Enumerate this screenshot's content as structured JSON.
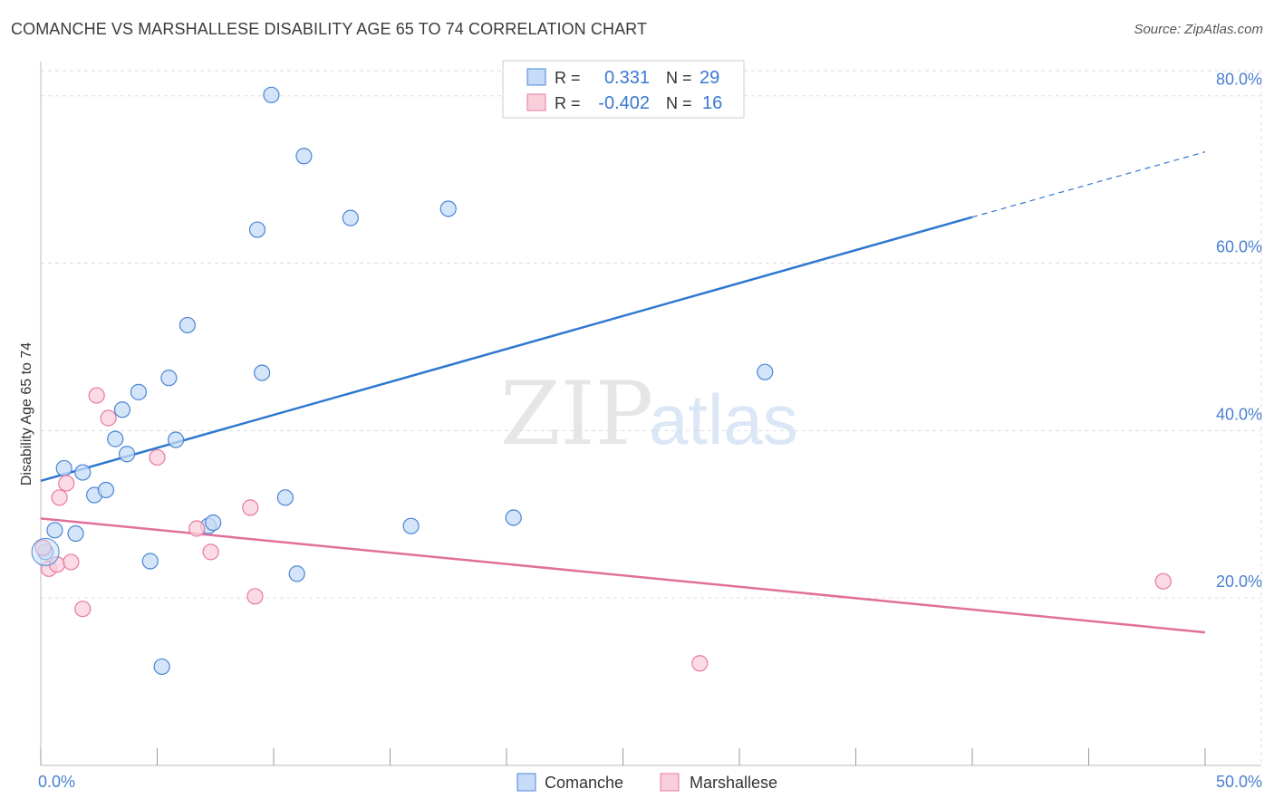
{
  "title": "COMANCHE VS MARSHALLESE DISABILITY AGE 65 TO 74 CORRELATION CHART",
  "source": "Source: ZipAtlas.com",
  "watermark": {
    "zip": "ZIP",
    "atlas": "atlas"
  },
  "colors": {
    "blue": "#4a86d4",
    "blue_fill": "#c6dbf7",
    "blue_line": "#2f78cf",
    "pink": "#e8799e",
    "pink_fill": "#f9cfdc",
    "pink_line": "#e0709a",
    "tick_text": "#4a7fd0",
    "grid": "#dddddd"
  },
  "legend": {
    "rows": [
      {
        "r_label": "R =",
        "r_value": "0.331",
        "n_label": "N =",
        "n_value": "29"
      },
      {
        "r_label": "R =",
        "r_value": "-0.402",
        "n_label": "N =",
        "n_value": "16"
      }
    ]
  },
  "chart_data": {
    "type": "scatter",
    "title": "COMANCHE VS MARSHALLESE DISABILITY AGE 65 TO 74 CORRELATION CHART",
    "xlabel": "",
    "ylabel": "Disability Age 65 to 74",
    "xlim": [
      0,
      50
    ],
    "ylim": [
      0,
      83
    ],
    "x_tick_labels": [
      "0.0%",
      "50.0%"
    ],
    "y_ticks": [
      20,
      40,
      60,
      80
    ],
    "y_tick_labels": [
      "20.0%",
      "40.0%",
      "60.0%",
      "80.0%"
    ],
    "grid": true,
    "series": [
      {
        "name": "Comanche",
        "color": "blue",
        "points": [
          {
            "x": 0.2,
            "y": 25.5
          },
          {
            "x": 0.6,
            "y": 28.1
          },
          {
            "x": 1.0,
            "y": 35.5
          },
          {
            "x": 1.5,
            "y": 27.7
          },
          {
            "x": 1.8,
            "y": 35.0
          },
          {
            "x": 2.3,
            "y": 32.3
          },
          {
            "x": 2.8,
            "y": 32.9
          },
          {
            "x": 3.2,
            "y": 39.0
          },
          {
            "x": 3.5,
            "y": 42.5
          },
          {
            "x": 3.7,
            "y": 37.2
          },
          {
            "x": 4.2,
            "y": 44.6
          },
          {
            "x": 4.7,
            "y": 24.4
          },
          {
            "x": 5.2,
            "y": 11.8
          },
          {
            "x": 5.5,
            "y": 46.3
          },
          {
            "x": 5.8,
            "y": 38.9
          },
          {
            "x": 6.3,
            "y": 52.6
          },
          {
            "x": 7.2,
            "y": 28.6
          },
          {
            "x": 7.4,
            "y": 29.0
          },
          {
            "x": 9.3,
            "y": 64.0
          },
          {
            "x": 9.5,
            "y": 46.9
          },
          {
            "x": 9.9,
            "y": 80.1
          },
          {
            "x": 10.5,
            "y": 32.0
          },
          {
            "x": 11.0,
            "y": 22.9
          },
          {
            "x": 11.3,
            "y": 72.8
          },
          {
            "x": 13.3,
            "y": 65.4
          },
          {
            "x": 15.9,
            "y": 28.6
          },
          {
            "x": 17.5,
            "y": 66.5
          },
          {
            "x": 20.3,
            "y": 29.6
          },
          {
            "x": 31.1,
            "y": 47.0
          }
        ],
        "trend": {
          "x": [
            0,
            40
          ],
          "y": [
            34.0,
            65.5
          ],
          "dashed_to": {
            "x": 50,
            "y": 73.3
          }
        }
      },
      {
        "name": "Marshallese",
        "color": "pink",
        "points": [
          {
            "x": 0.1,
            "y": 26.0
          },
          {
            "x": 0.35,
            "y": 23.5
          },
          {
            "x": 0.7,
            "y": 24.0
          },
          {
            "x": 0.8,
            "y": 32.0
          },
          {
            "x": 1.1,
            "y": 33.7
          },
          {
            "x": 1.3,
            "y": 24.3
          },
          {
            "x": 1.8,
            "y": 18.7
          },
          {
            "x": 2.4,
            "y": 44.2
          },
          {
            "x": 2.9,
            "y": 41.5
          },
          {
            "x": 5.0,
            "y": 36.8
          },
          {
            "x": 6.7,
            "y": 28.3
          },
          {
            "x": 7.3,
            "y": 25.5
          },
          {
            "x": 9.0,
            "y": 30.8
          },
          {
            "x": 9.2,
            "y": 20.2
          },
          {
            "x": 28.3,
            "y": 12.2
          },
          {
            "x": 48.2,
            "y": 22.0
          }
        ],
        "trend": {
          "x": [
            0,
            50
          ],
          "y": [
            29.5,
            15.9
          ]
        }
      }
    ]
  }
}
